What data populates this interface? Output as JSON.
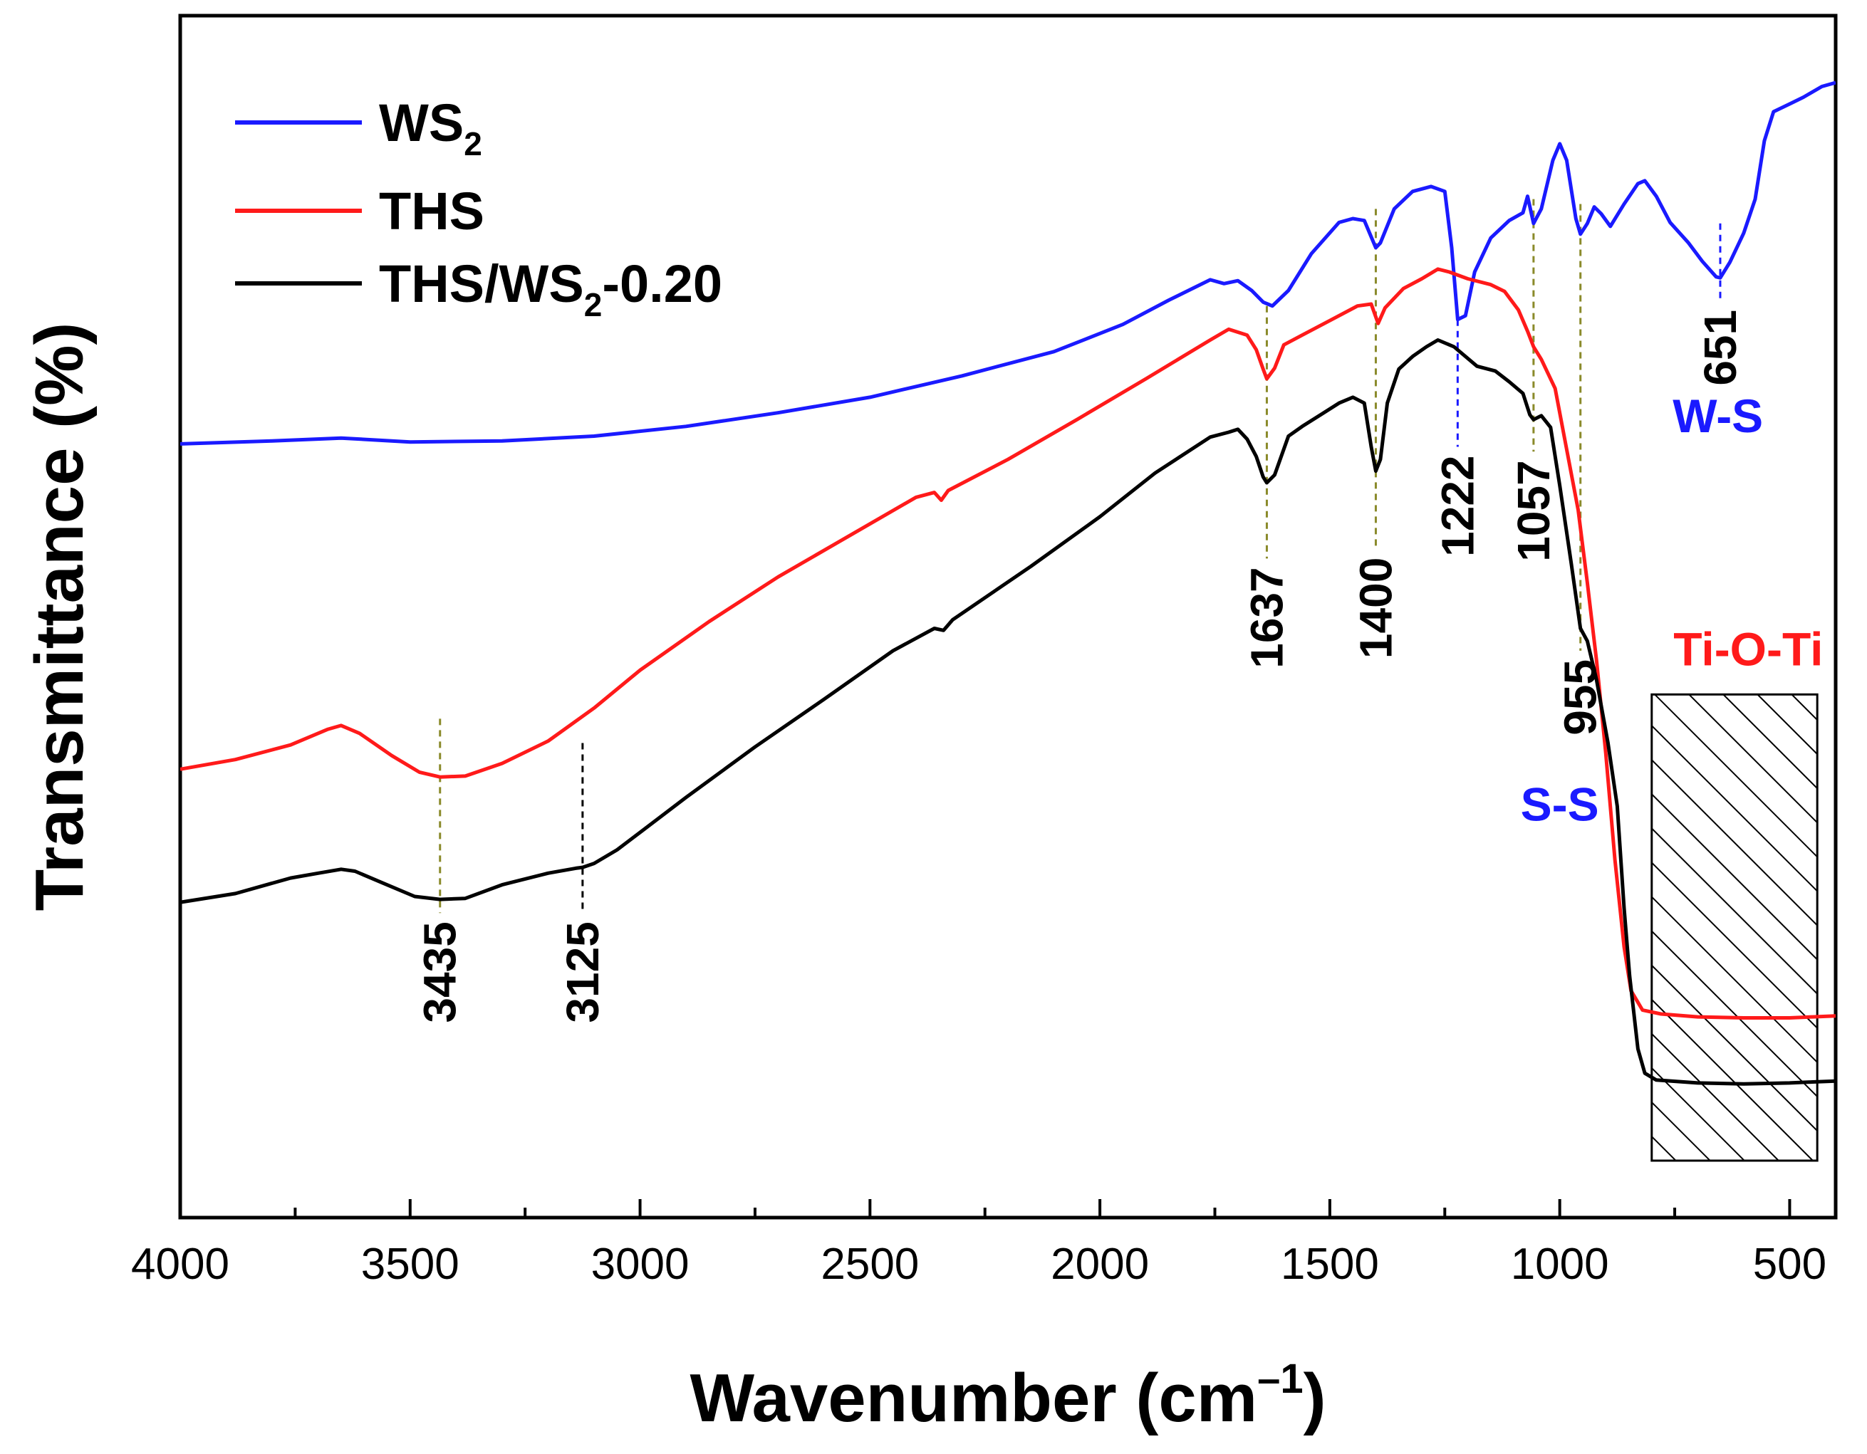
{
  "chart_data": {
    "type": "line",
    "title": "",
    "xlabel": "Wavenumber (cm",
    "xlabel_sup": "–1",
    "xlabel_close": ")",
    "ylabel": "Transmittance (%)",
    "xlim": [
      4000,
      400
    ],
    "x_reversed": true,
    "ylim": [
      0,
      100
    ],
    "y_ticks_shown": false,
    "x_ticks": [
      "4000",
      "3500",
      "3000",
      "2500",
      "2000",
      "1500",
      "1000",
      "500"
    ],
    "x_tick_values": [
      4000,
      3500,
      3000,
      2500,
      2000,
      1500,
      1000,
      500
    ],
    "legend_position": "top-left",
    "colors": {
      "ws2": "#1a1aff",
      "ths": "#ff1a1a",
      "composite": "#000000",
      "guide": "#8a8a2a",
      "ws_label": "#1a1aff",
      "tio_label": "#ff1a1a"
    },
    "series": [
      {
        "name_main": "WS",
        "name_sub": "2",
        "name_rest": "",
        "color": "#1a1aff",
        "points": [
          [
            4000,
            61.8
          ],
          [
            3800,
            62.1
          ],
          [
            3650,
            62.4
          ],
          [
            3500,
            62.0
          ],
          [
            3300,
            62.1
          ],
          [
            3100,
            62.6
          ],
          [
            2900,
            63.6
          ],
          [
            2700,
            65.0
          ],
          [
            2500,
            66.6
          ],
          [
            2300,
            68.8
          ],
          [
            2100,
            71.3
          ],
          [
            1950,
            74.1
          ],
          [
            1850,
            76.6
          ],
          [
            1760,
            78.7
          ],
          [
            1730,
            78.3
          ],
          [
            1700,
            78.6
          ],
          [
            1670,
            77.6
          ],
          [
            1645,
            76.4
          ],
          [
            1625,
            76.0
          ],
          [
            1590,
            77.6
          ],
          [
            1540,
            81.4
          ],
          [
            1480,
            84.6
          ],
          [
            1450,
            85.0
          ],
          [
            1425,
            84.8
          ],
          [
            1400,
            82.0
          ],
          [
            1390,
            82.5
          ],
          [
            1360,
            86.0
          ],
          [
            1320,
            87.8
          ],
          [
            1280,
            88.3
          ],
          [
            1250,
            87.8
          ],
          [
            1235,
            82.0
          ],
          [
            1222,
            74.6
          ],
          [
            1205,
            75.0
          ],
          [
            1185,
            79.5
          ],
          [
            1150,
            83.0
          ],
          [
            1110,
            84.8
          ],
          [
            1080,
            85.6
          ],
          [
            1070,
            87.3
          ],
          [
            1057,
            84.5
          ],
          [
            1040,
            86.0
          ],
          [
            1015,
            91.0
          ],
          [
            1000,
            92.7
          ],
          [
            985,
            91.0
          ],
          [
            965,
            85.0
          ],
          [
            955,
            83.4
          ],
          [
            940,
            84.5
          ],
          [
            925,
            86.2
          ],
          [
            910,
            85.5
          ],
          [
            890,
            84.2
          ],
          [
            860,
            86.5
          ],
          [
            830,
            88.6
          ],
          [
            815,
            88.9
          ],
          [
            790,
            87.3
          ],
          [
            760,
            84.6
          ],
          [
            720,
            82.5
          ],
          [
            690,
            80.6
          ],
          [
            660,
            79.0
          ],
          [
            651,
            78.9
          ],
          [
            630,
            80.5
          ],
          [
            600,
            83.5
          ],
          [
            575,
            87.0
          ],
          [
            555,
            93.0
          ],
          [
            535,
            96.0
          ],
          [
            500,
            96.8
          ],
          [
            470,
            97.5
          ],
          [
            430,
            98.6
          ],
          [
            400,
            99.0
          ]
        ]
      },
      {
        "name_main": "THS",
        "name_sub": "",
        "name_rest": "",
        "color": "#ff1a1a",
        "points": [
          [
            4000,
            28.3
          ],
          [
            3880,
            29.3
          ],
          [
            3760,
            30.8
          ],
          [
            3680,
            32.4
          ],
          [
            3650,
            32.8
          ],
          [
            3610,
            32.0
          ],
          [
            3540,
            29.7
          ],
          [
            3480,
            28.0
          ],
          [
            3435,
            27.5
          ],
          [
            3380,
            27.6
          ],
          [
            3300,
            28.9
          ],
          [
            3200,
            31.2
          ],
          [
            3100,
            34.6
          ],
          [
            3000,
            38.5
          ],
          [
            2850,
            43.5
          ],
          [
            2700,
            48.1
          ],
          [
            2550,
            52.2
          ],
          [
            2400,
            56.3
          ],
          [
            2360,
            56.8
          ],
          [
            2345,
            56.0
          ],
          [
            2330,
            57.0
          ],
          [
            2200,
            60.2
          ],
          [
            2050,
            64.3
          ],
          [
            1900,
            68.5
          ],
          [
            1760,
            72.5
          ],
          [
            1720,
            73.6
          ],
          [
            1700,
            73.3
          ],
          [
            1680,
            73.0
          ],
          [
            1660,
            71.5
          ],
          [
            1645,
            69.5
          ],
          [
            1637,
            68.5
          ],
          [
            1620,
            69.6
          ],
          [
            1600,
            72.0
          ],
          [
            1560,
            73.0
          ],
          [
            1500,
            74.5
          ],
          [
            1440,
            76.0
          ],
          [
            1410,
            76.2
          ],
          [
            1395,
            74.2
          ],
          [
            1380,
            75.8
          ],
          [
            1340,
            77.8
          ],
          [
            1300,
            78.8
          ],
          [
            1265,
            79.8
          ],
          [
            1240,
            79.5
          ],
          [
            1200,
            78.8
          ],
          [
            1150,
            78.2
          ],
          [
            1120,
            77.5
          ],
          [
            1090,
            75.6
          ],
          [
            1070,
            73.4
          ],
          [
            1057,
            71.8
          ],
          [
            1040,
            70.5
          ],
          [
            1010,
            67.5
          ],
          [
            990,
            62.5
          ],
          [
            960,
            55.0
          ],
          [
            940,
            47.5
          ],
          [
            920,
            39.5
          ],
          [
            900,
            30.0
          ],
          [
            880,
            19.0
          ],
          [
            860,
            10.0
          ],
          [
            845,
            5.5
          ],
          [
            820,
            3.5
          ],
          [
            780,
            3.1
          ],
          [
            700,
            2.8
          ],
          [
            600,
            2.7
          ],
          [
            500,
            2.7
          ],
          [
            450,
            2.8
          ],
          [
            400,
            2.9
          ]
        ]
      },
      {
        "name_main": "THS/WS",
        "name_sub": "2",
        "name_rest": "-0.20",
        "color": "#000000",
        "points": [
          [
            4000,
            14.6
          ],
          [
            3880,
            15.5
          ],
          [
            3760,
            17.1
          ],
          [
            3700,
            17.6
          ],
          [
            3650,
            18.0
          ],
          [
            3620,
            17.8
          ],
          [
            3560,
            16.6
          ],
          [
            3490,
            15.2
          ],
          [
            3435,
            14.9
          ],
          [
            3380,
            15.0
          ],
          [
            3300,
            16.4
          ],
          [
            3200,
            17.6
          ],
          [
            3140,
            18.1
          ],
          [
            3125,
            18.2
          ],
          [
            3100,
            18.6
          ],
          [
            3050,
            20.0
          ],
          [
            3000,
            21.8
          ],
          [
            2900,
            25.4
          ],
          [
            2750,
            30.6
          ],
          [
            2600,
            35.5
          ],
          [
            2450,
            40.5
          ],
          [
            2360,
            42.8
          ],
          [
            2340,
            42.6
          ],
          [
            2320,
            43.7
          ],
          [
            2150,
            49.2
          ],
          [
            2000,
            54.3
          ],
          [
            1880,
            58.8
          ],
          [
            1760,
            62.5
          ],
          [
            1720,
            63.0
          ],
          [
            1700,
            63.3
          ],
          [
            1680,
            62.3
          ],
          [
            1660,
            60.5
          ],
          [
            1645,
            58.4
          ],
          [
            1637,
            57.8
          ],
          [
            1620,
            58.6
          ],
          [
            1590,
            62.6
          ],
          [
            1560,
            63.6
          ],
          [
            1520,
            64.8
          ],
          [
            1480,
            66.0
          ],
          [
            1450,
            66.6
          ],
          [
            1425,
            66.0
          ],
          [
            1410,
            61.5
          ],
          [
            1400,
            59.0
          ],
          [
            1390,
            60.2
          ],
          [
            1375,
            66.0
          ],
          [
            1350,
            69.5
          ],
          [
            1320,
            70.8
          ],
          [
            1290,
            71.8
          ],
          [
            1265,
            72.5
          ],
          [
            1230,
            71.8
          ],
          [
            1180,
            69.8
          ],
          [
            1140,
            69.3
          ],
          [
            1110,
            68.2
          ],
          [
            1080,
            67.0
          ],
          [
            1065,
            64.8
          ],
          [
            1057,
            64.3
          ],
          [
            1040,
            64.7
          ],
          [
            1020,
            63.5
          ],
          [
            1000,
            57.5
          ],
          [
            975,
            49.5
          ],
          [
            955,
            42.8
          ],
          [
            940,
            41.5
          ],
          [
            920,
            37.5
          ],
          [
            895,
            31.0
          ],
          [
            875,
            24.5
          ],
          [
            860,
            14.0
          ],
          [
            848,
            7.0
          ],
          [
            830,
            -0.5
          ],
          [
            815,
            -3.0
          ],
          [
            790,
            -3.7
          ],
          [
            700,
            -4.0
          ],
          [
            600,
            -4.1
          ],
          [
            500,
            -4.0
          ],
          [
            450,
            -3.9
          ],
          [
            400,
            -3.8
          ]
        ]
      }
    ],
    "annotations": {
      "peaks": [
        {
          "label": "3435",
          "x": 3435,
          "color": "#8a8a2a",
          "y_top": 33.5,
          "y_bottom": 13.5
        },
        {
          "label": "3125",
          "x": 3125,
          "color": "#000000",
          "y_top": 31.0,
          "y_bottom": 13.5
        },
        {
          "label": "1637",
          "x": 1637,
          "color": "#8a8a2a",
          "y_top": 76.0,
          "y_bottom": 50.0
        },
        {
          "label": "1400",
          "x": 1400,
          "color": "#8a8a2a",
          "y_top": 86.0,
          "y_bottom": 51.0
        },
        {
          "label": "1222",
          "x": 1222,
          "color": "#1a1aff",
          "y_top": 74.6,
          "y_bottom": 61.5
        },
        {
          "label": "1057",
          "x": 1057,
          "color": "#8a8a2a",
          "y_top": 87.0,
          "y_bottom": 61.0
        },
        {
          "label": "955",
          "x": 955,
          "color": "#8a8a2a",
          "y_top": 86.5,
          "y_bottom": 40.5
        },
        {
          "label": "651",
          "x": 651,
          "color": "#1a1aff",
          "y_top": 84.5,
          "y_bottom": 76.5
        }
      ],
      "assignments": [
        {
          "text": "W-S",
          "x": 656,
          "y": 63.0,
          "color": "#1a1aff"
        },
        {
          "text": "S-S",
          "x": 1000,
          "y": 23.0,
          "color": "#1a1aff"
        },
        {
          "text": "Ti-O-Ti",
          "x": 590,
          "y": 39.0,
          "color": "#ff1a1a"
        }
      ],
      "hatched_region": {
        "x_start": 800,
        "x_end": 440,
        "y_low": -12.0,
        "y_high": 36.0
      }
    }
  }
}
